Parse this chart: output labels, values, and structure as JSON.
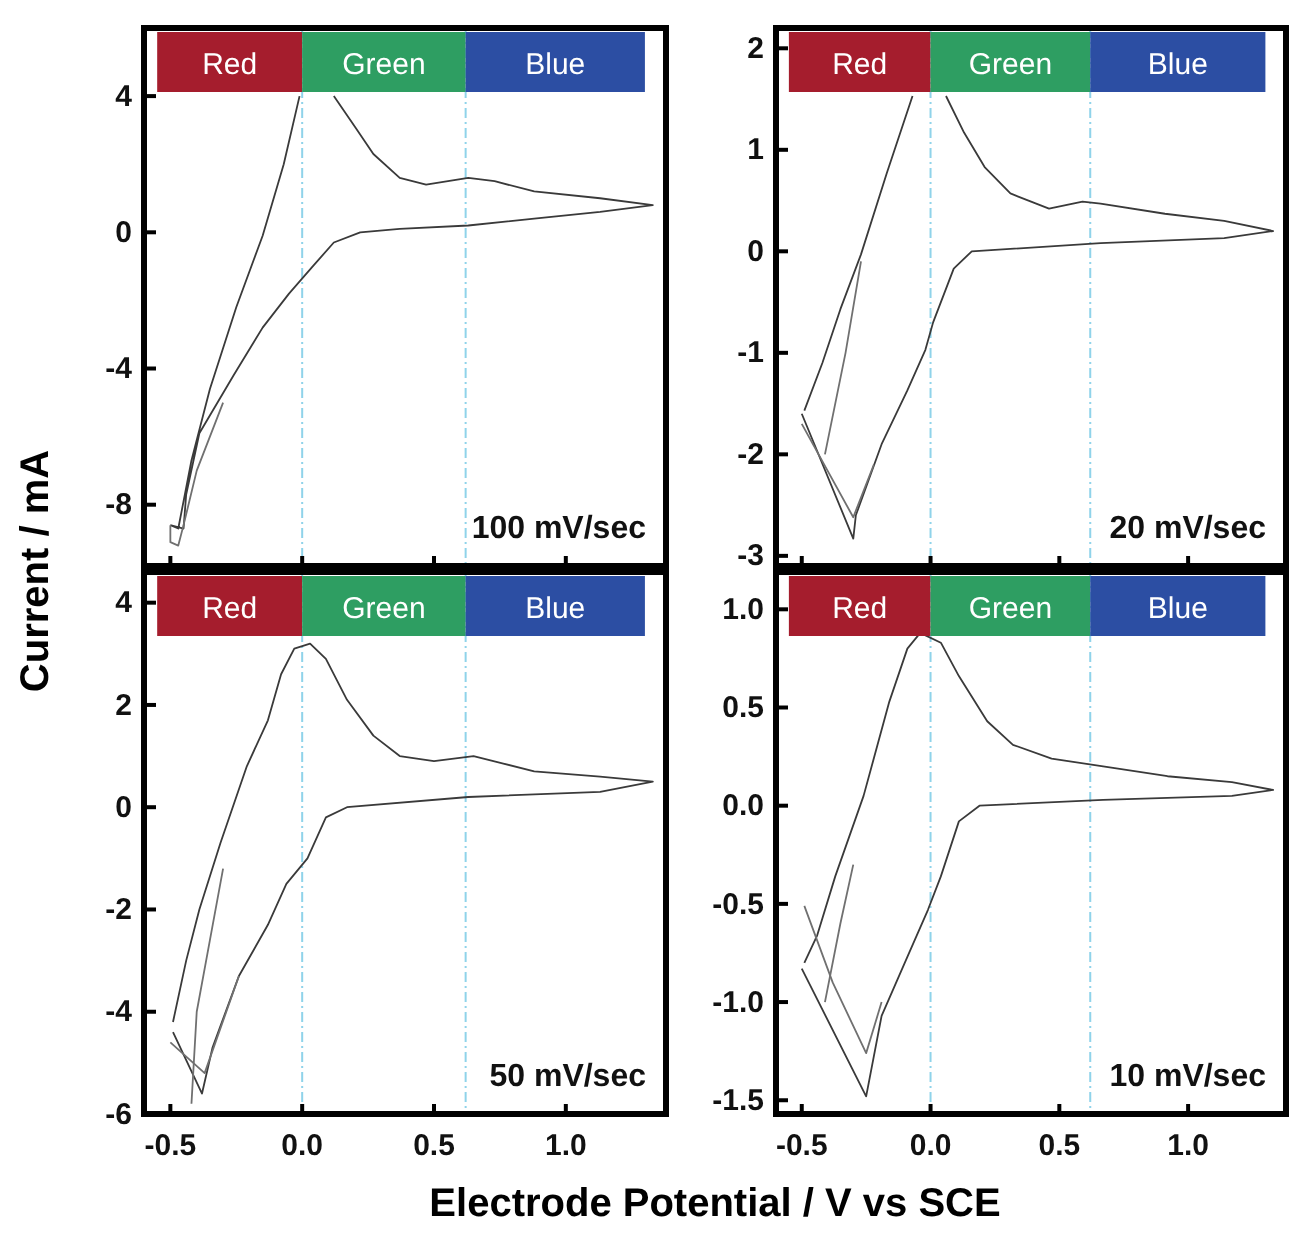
{
  "chart_data": [
    {
      "type": "line",
      "ylabel": "Current / mA",
      "annotations": [
        "100 mV/sec"
      ],
      "xlim": [
        -0.6,
        1.38
      ],
      "ylim": [
        -9.8,
        6
      ],
      "xticks": [
        {
          "value": -0.5,
          "label": null
        },
        {
          "value": 0,
          "label": null
        },
        {
          "value": 0.5,
          "label": null
        },
        {
          "value": 1,
          "label": null
        }
      ],
      "yticks": [
        -8,
        -4,
        0,
        4
      ],
      "tick_labels": "y",
      "ref_lines": [
        {
          "axis": "x",
          "value": 0,
          "color": "#8fd3ea",
          "line_style": "dashed"
        },
        {
          "axis": "x",
          "value": 0.62,
          "color": "#8fd3ea",
          "line_style": "dashed"
        }
      ],
      "bands": [
        {
          "axis": "x",
          "from": -0.55,
          "to": 0,
          "label": "Red",
          "color": "#a51d2d"
        },
        {
          "axis": "x",
          "from": 0,
          "to": 0.62,
          "label": "Green",
          "color": "#2e9e62"
        },
        {
          "axis": "x",
          "from": 0.62,
          "to": 1.3,
          "label": "Blue",
          "color": "#2c4ea3"
        }
      ],
      "series": [
        {
          "color": "#3a3a3a",
          "x": [
            -0.5,
            -0.47,
            -0.42,
            -0.35,
            -0.25,
            -0.15,
            -0.07,
            -0.01,
            null,
            0.12,
            0.2,
            0.27,
            0.37,
            0.47,
            0.63,
            0.73,
            0.88,
            1.13,
            1.33,
            1.13,
            0.88,
            0.63,
            0.37,
            0.22,
            0.12,
            0.04,
            -0.05,
            -0.15,
            -0.26,
            -0.39,
            -0.44,
            -0.45,
            -0.5
          ],
          "values": [
            -8.6,
            -8.7,
            -6.7,
            -4.6,
            -2.2,
            -0.1,
            2.0,
            4.0,
            null,
            4.0,
            3.1,
            2.3,
            1.6,
            1.4,
            1.6,
            1.5,
            1.2,
            1.0,
            0.8,
            0.6,
            0.4,
            0.2,
            0.1,
            0,
            -0.3,
            -1.0,
            -1.8,
            -2.8,
            -4.2,
            -5.9,
            -7.7,
            -8.7,
            -8.6
          ]
        },
        {
          "color": "#707070",
          "x": [
            -0.3,
            -0.4,
            -0.45,
            -0.47,
            -0.5,
            -0.5
          ],
          "values": [
            -5.0,
            -7.0,
            -8.6,
            -9.2,
            -9.1,
            -8.6
          ]
        }
      ]
    },
    {
      "type": "line",
      "annotations": [
        "20 mV/sec"
      ],
      "xlim": [
        -0.6,
        1.38
      ],
      "ylim": [
        -3.1,
        2.2
      ],
      "xticks": [
        {
          "value": -0.5,
          "label": null
        },
        {
          "value": 0,
          "label": null
        },
        {
          "value": 0.5,
          "label": null
        },
        {
          "value": 1,
          "label": null
        }
      ],
      "yticks": [
        -3,
        -2,
        -1,
        0,
        1,
        2
      ],
      "tick_labels": "y",
      "ref_lines": [
        {
          "axis": "x",
          "value": 0,
          "color": "#8fd3ea",
          "line_style": "dashed"
        },
        {
          "axis": "x",
          "value": 0.62,
          "color": "#8fd3ea",
          "line_style": "dashed"
        }
      ],
      "bands": [
        {
          "axis": "x",
          "from": -0.55,
          "to": 0,
          "label": "Red",
          "color": "#a51d2d"
        },
        {
          "axis": "x",
          "from": 0,
          "to": 0.62,
          "label": "Green",
          "color": "#2e9e62"
        },
        {
          "axis": "x",
          "from": 0.62,
          "to": 1.3,
          "label": "Blue",
          "color": "#2c4ea3"
        }
      ],
      "series": [
        {
          "color": "#3a3a3a",
          "x": [
            -0.49,
            -0.42,
            -0.35,
            -0.27,
            -0.17,
            -0.07,
            null,
            0.06,
            0.13,
            0.21,
            0.31,
            0.46,
            0.59,
            0.66,
            0.91,
            1.14,
            1.33,
            1.14,
            0.66,
            0.16,
            0.09,
            0.01,
            -0.02,
            -0.09,
            -0.19,
            -0.29,
            -0.3,
            -0.5
          ],
          "values": [
            -1.57,
            -1.1,
            -0.57,
            -0.03,
            0.77,
            1.53,
            null,
            1.53,
            1.17,
            0.83,
            0.57,
            0.42,
            0.49,
            0.47,
            0.37,
            0.3,
            0.2,
            0.13,
            0.08,
            0,
            -0.17,
            -0.7,
            -0.97,
            -1.37,
            -1.9,
            -2.6,
            -2.83,
            -1.6
          ]
        },
        {
          "color": "#707070",
          "x": [
            -0.41,
            -0.33,
            -0.27
          ],
          "values": [
            -2.0,
            -1.0,
            -0.1
          ]
        },
        {
          "color": "#707070",
          "x": [
            -0.22,
            -0.3,
            -0.5
          ],
          "values": [
            -2.1,
            -2.62,
            -1.7
          ]
        }
      ]
    },
    {
      "type": "line",
      "xlabel": "Electrode Potential / V vs SCE",
      "annotations": [
        "50 mV/sec"
      ],
      "xlim": [
        -0.6,
        1.38
      ],
      "ylim": [
        -6,
        4.6
      ],
      "xticks": [
        {
          "value": -0.5,
          "label": "-0.5"
        },
        {
          "value": 0,
          "label": "0.0"
        },
        {
          "value": 0.5,
          "label": "0.5"
        },
        {
          "value": 1,
          "label": "1.0"
        }
      ],
      "yticks": [
        -6,
        -4,
        -2,
        0,
        2,
        4
      ],
      "ref_lines": [
        {
          "axis": "x",
          "value": 0,
          "color": "#8fd3ea",
          "line_style": "dashed"
        },
        {
          "axis": "x",
          "value": 0.62,
          "color": "#8fd3ea",
          "line_style": "dashed"
        }
      ],
      "bands": [
        {
          "axis": "x",
          "from": -0.55,
          "to": 0,
          "label": "Red",
          "color": "#a51d2d"
        },
        {
          "axis": "x",
          "from": 0,
          "to": 0.62,
          "label": "Green",
          "color": "#2e9e62"
        },
        {
          "axis": "x",
          "from": 0.62,
          "to": 1.3,
          "label": "Blue",
          "color": "#2c4ea3"
        }
      ],
      "series": [
        {
          "color": "#3a3a3a",
          "x": [
            -0.49,
            -0.44,
            -0.39,
            -0.31,
            -0.21,
            -0.13,
            -0.08,
            -0.03,
            0.03,
            0.09,
            0.17,
            0.27,
            0.37,
            0.5,
            0.65,
            0.88,
            1.13,
            1.33,
            1.13,
            0.63,
            0.17,
            0.09,
            0.02,
            -0.06,
            -0.13,
            -0.24,
            -0.34,
            -0.38,
            -0.49
          ],
          "values": [
            -4.2,
            -3.0,
            -2.0,
            -0.7,
            0.8,
            1.7,
            2.6,
            3.1,
            3.2,
            2.9,
            2.1,
            1.4,
            1.0,
            0.9,
            1.0,
            0.7,
            0.6,
            0.5,
            0.3,
            0.2,
            0,
            -0.2,
            -1.0,
            -1.5,
            -2.3,
            -3.3,
            -4.7,
            -5.6,
            -4.4
          ]
        },
        {
          "color": "#707070",
          "x": [
            -0.42,
            -0.4,
            -0.35,
            -0.3
          ],
          "values": [
            -5.8,
            -4.0,
            -2.6,
            -1.2
          ]
        },
        {
          "color": "#707070",
          "x": [
            -0.24,
            -0.37,
            -0.5
          ],
          "values": [
            -3.3,
            -5.2,
            -4.6
          ]
        }
      ]
    },
    {
      "type": "line",
      "annotations": [
        "10 mV/sec"
      ],
      "xlim": [
        -0.6,
        1.38
      ],
      "ylim": [
        -1.57,
        1.19
      ],
      "xticks": [
        {
          "value": -0.5,
          "label": "-0.5"
        },
        {
          "value": 0,
          "label": "0.0"
        },
        {
          "value": 0.5,
          "label": "0.5"
        },
        {
          "value": 1,
          "label": "1.0"
        }
      ],
      "yticks": [
        {
          "value": -1.5,
          "label": "-1.5"
        },
        {
          "value": -1,
          "label": "-1.0"
        },
        {
          "value": -0.5,
          "label": "-0.5"
        },
        {
          "value": 0,
          "label": "0.0"
        },
        {
          "value": 0.5,
          "label": "0.5"
        },
        {
          "value": 1,
          "label": "1.0"
        }
      ],
      "ref_lines": [
        {
          "axis": "x",
          "value": 0,
          "color": "#8fd3ea",
          "line_style": "dashed"
        },
        {
          "axis": "x",
          "value": 0.62,
          "color": "#8fd3ea",
          "line_style": "dashed"
        }
      ],
      "bands": [
        {
          "axis": "x",
          "from": -0.55,
          "to": 0,
          "label": "Red",
          "color": "#a51d2d"
        },
        {
          "axis": "x",
          "from": 0,
          "to": 0.62,
          "label": "Green",
          "color": "#2e9e62"
        },
        {
          "axis": "x",
          "from": 0.62,
          "to": 1.3,
          "label": "Blue",
          "color": "#2c4ea3"
        }
      ],
      "series": [
        {
          "color": "#3a3a3a",
          "x": [
            -0.49,
            -0.44,
            -0.37,
            -0.26,
            -0.16,
            -0.09,
            -0.04,
            0.04,
            0.11,
            0.22,
            0.32,
            0.47,
            0.67,
            0.92,
            1.17,
            1.33,
            1.17,
            0.67,
            0.19,
            0.11,
            0.04,
            -0.01,
            -0.09,
            -0.19,
            -0.25,
            -0.5
          ],
          "values": [
            -0.8,
            -0.66,
            -0.36,
            0.05,
            0.53,
            0.8,
            0.88,
            0.83,
            0.66,
            0.43,
            0.31,
            0.24,
            0.2,
            0.15,
            0.12,
            0.08,
            0.05,
            0.03,
            0,
            -0.08,
            -0.36,
            -0.53,
            -0.77,
            -1.07,
            -1.48,
            -0.83
          ]
        },
        {
          "color": "#707070",
          "x": [
            -0.41,
            -0.35,
            -0.3
          ],
          "values": [
            -1.0,
            -0.6,
            -0.3
          ]
        },
        {
          "color": "#707070",
          "x": [
            -0.19,
            -0.25,
            -0.38,
            -0.49
          ],
          "values": [
            -1.0,
            -1.26,
            -0.9,
            -0.51
          ]
        }
      ]
    }
  ]
}
